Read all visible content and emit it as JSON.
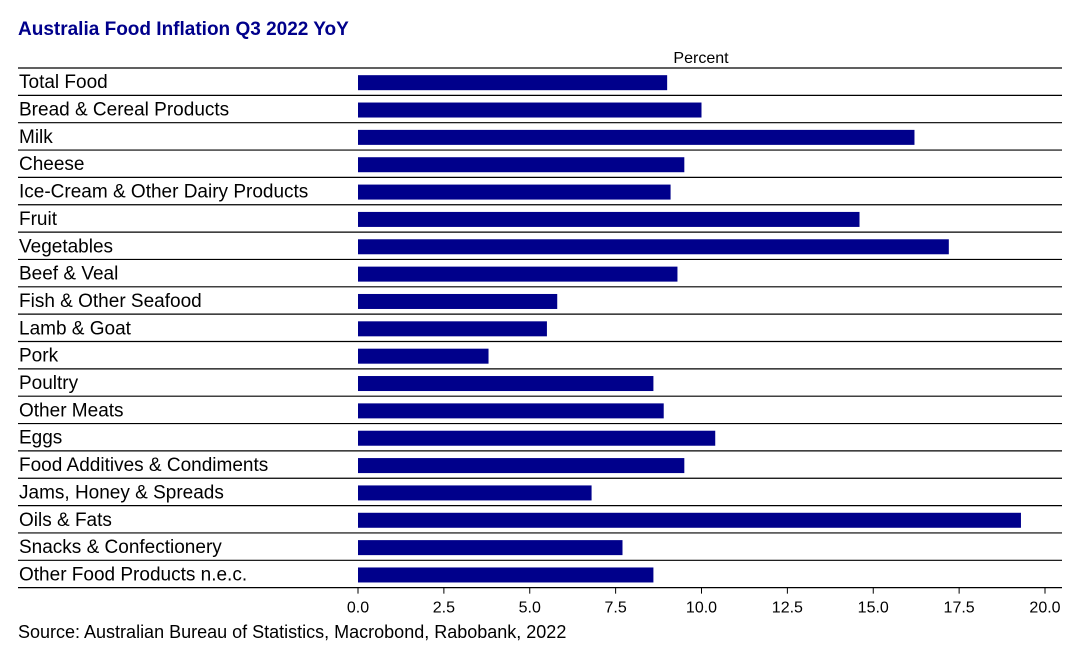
{
  "chart_data": {
    "type": "bar",
    "orientation": "horizontal",
    "title": "Australia Food Inflation Q3 2022 YoY",
    "unit_label": "Percent",
    "source": "Source: Australian Bureau of Statistics, Macrobond, Rabobank, 2022",
    "categories": [
      "Total Food",
      "Bread & Cereal Products",
      "Milk",
      "Cheese",
      "Ice-Cream & Other Dairy Products",
      "Fruit",
      "Vegetables",
      "Beef & Veal",
      "Fish & Other Seafood",
      "Lamb & Goat",
      "Pork",
      "Poultry",
      "Other Meats",
      "Eggs",
      "Food Additives & Condiments",
      "Jams, Honey & Spreads",
      "Oils & Fats",
      "Snacks & Confectionery",
      "Other Food Products n.e.c."
    ],
    "values": [
      9.0,
      10.0,
      16.2,
      9.5,
      9.1,
      14.6,
      17.2,
      9.3,
      5.8,
      5.5,
      3.8,
      8.6,
      8.9,
      10.4,
      9.5,
      6.8,
      19.3,
      7.7,
      8.6
    ],
    "xlim": [
      0,
      20
    ],
    "xticks": [
      "0.0",
      "2.5",
      "5.0",
      "7.5",
      "10.0",
      "12.5",
      "15.0",
      "17.5",
      "20.0"
    ],
    "grid": false,
    "legend": "none",
    "bar_color": "#00008b",
    "title_color": "#00008b"
  }
}
